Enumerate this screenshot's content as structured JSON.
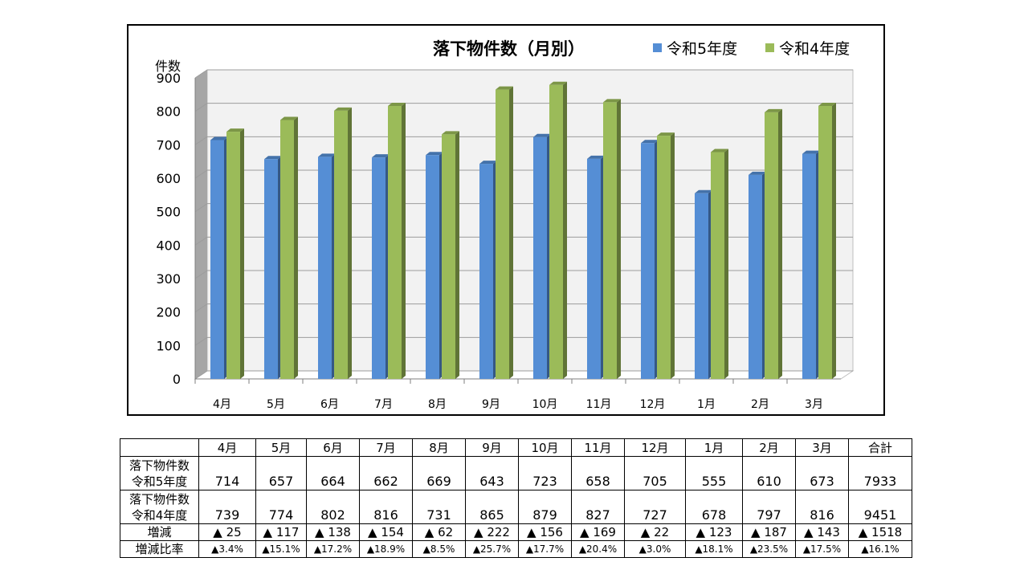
{
  "chart_data": {
    "type": "bar",
    "title": "落下物件数（月別）",
    "ylabel": "件数",
    "xlabel": "",
    "ylim": [
      0,
      900
    ],
    "yticks": [
      0,
      100,
      200,
      300,
      400,
      500,
      600,
      700,
      800,
      900
    ],
    "grid": true,
    "legend": "top-right",
    "categories": [
      "4月",
      "5月",
      "6月",
      "7月",
      "8月",
      "9月",
      "10月",
      "11月",
      "12月",
      "1月",
      "2月",
      "3月"
    ],
    "series": [
      {
        "name": "令和5年度",
        "color": "#558ed5",
        "values": [
          714,
          657,
          664,
          662,
          669,
          643,
          723,
          658,
          705,
          555,
          610,
          673
        ]
      },
      {
        "name": "令和4年度",
        "color": "#9bbb59",
        "values": [
          739,
          774,
          802,
          816,
          731,
          865,
          879,
          827,
          727,
          678,
          797,
          816
        ]
      }
    ]
  },
  "table": {
    "headers": [
      "4月",
      "5月",
      "6月",
      "7月",
      "8月",
      "9月",
      "10月",
      "11月",
      "12月",
      "1月",
      "2月",
      "3月",
      "合計"
    ],
    "rows": [
      {
        "label1": "落下物件数",
        "label2": "令和5年度",
        "values": [
          "714",
          "657",
          "664",
          "662",
          "669",
          "643",
          "723",
          "658",
          "705",
          "555",
          "610",
          "673",
          "7933"
        ]
      },
      {
        "label1": "落下物件数",
        "label2": "令和4年度",
        "values": [
          "739",
          "774",
          "802",
          "816",
          "731",
          "865",
          "879",
          "827",
          "727",
          "678",
          "797",
          "816",
          "9451"
        ]
      },
      {
        "label1": "増減",
        "values": [
          "▲ 25",
          "▲ 117",
          "▲ 138",
          "▲ 154",
          "▲ 62",
          "▲ 222",
          "▲ 156",
          "▲ 169",
          "▲ 22",
          "▲ 123",
          "▲ 187",
          "▲ 143",
          "▲ 1518"
        ]
      },
      {
        "label1": "増減比率",
        "values": [
          "▲3.4%",
          "▲15.1%",
          "▲17.2%",
          "▲18.9%",
          "▲8.5%",
          "▲25.7%",
          "▲17.7%",
          "▲20.4%",
          "▲3.0%",
          "▲18.1%",
          "▲23.5%",
          "▲17.5%",
          "▲16.1%"
        ]
      }
    ]
  }
}
